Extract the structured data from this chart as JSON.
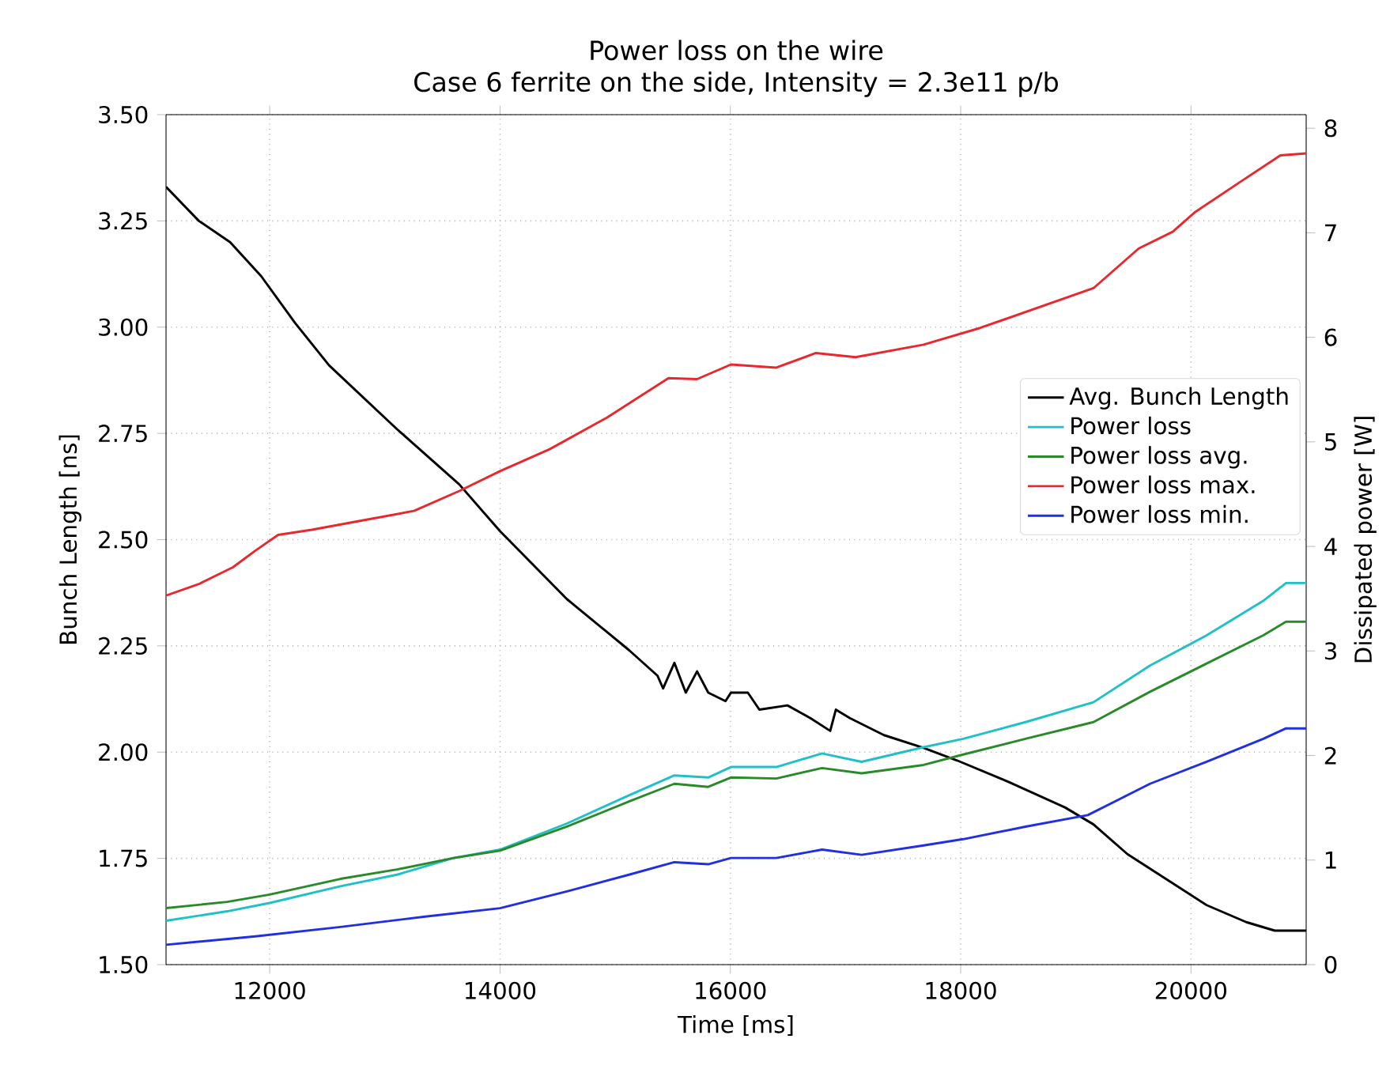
{
  "chart_data": {
    "type": "line",
    "title": "Power loss on the wire",
    "subtitle": "Case 6 ferrite on the side, Intensity = 2.3e11 p/b",
    "xlabel": "Time [ms]",
    "ylabel": "Bunch Length [ns]",
    "y2label": "Dissipated power [W]",
    "xlim": [
      11100,
      21000
    ],
    "xticks": [
      12000,
      14000,
      16000,
      18000,
      20000
    ],
    "ylim": [
      1.5,
      3.5
    ],
    "yticks": [
      {
        "value": 1.5,
        "label": "1.50"
      },
      {
        "value": 1.75,
        "label": "1.75"
      },
      {
        "value": 2.0,
        "label": "2.00"
      },
      {
        "value": 2.25,
        "label": "2.25"
      },
      {
        "value": 2.5,
        "label": "2.50"
      },
      {
        "value": 2.75,
        "label": "2.75"
      },
      {
        "value": 3.0,
        "label": "3.00"
      },
      {
        "value": 3.25,
        "label": "3.25"
      },
      {
        "value": 3.5,
        "label": "3.50"
      }
    ],
    "y2lim": [
      0,
      8.13
    ],
    "y2ticks": [
      0,
      1,
      2,
      3,
      4,
      5,
      6,
      7,
      8
    ],
    "grid": true,
    "legend": "right",
    "line_style": "solid",
    "series": [
      {
        "name": "Avg. Bunch Length",
        "color": "#000000",
        "x": [
          11100,
          11385,
          11656,
          11926,
          12220,
          12516,
          13105,
          13646,
          14000,
          14581,
          15120,
          15367,
          15416,
          15514,
          15613,
          15711,
          15808,
          15958,
          16005,
          16152,
          16252,
          16496,
          16695,
          16867,
          16916,
          17038,
          17334,
          17678,
          17973,
          18415,
          18905,
          19153,
          19448,
          19792,
          20136,
          20480,
          20727,
          21000
        ],
        "values": [
          3.33,
          3.25,
          3.2,
          3.12,
          3.01,
          2.91,
          2.76,
          2.63,
          2.52,
          2.36,
          2.24,
          2.18,
          2.15,
          2.21,
          2.14,
          2.19,
          2.14,
          2.12,
          2.14,
          2.14,
          2.1,
          2.11,
          2.08,
          2.05,
          2.1,
          2.08,
          2.04,
          2.01,
          1.98,
          1.93,
          1.87,
          1.83,
          1.76,
          1.7,
          1.64,
          1.6,
          1.58,
          1.58
        ]
      },
      {
        "name": "Power loss",
        "color": "#20c0c8",
        "axis": "y2",
        "x": [
          11100,
          11631,
          12000,
          12614,
          13105,
          13597,
          14000,
          14581,
          15120,
          15514,
          15808,
          16005,
          16399,
          16796,
          17140,
          17678,
          18022,
          18563,
          19153,
          19644,
          20136,
          20628,
          20825,
          21000
        ],
        "values": [
          0.42,
          0.51,
          0.59,
          0.75,
          0.86,
          1.02,
          1.1,
          1.35,
          1.62,
          1.81,
          1.79,
          1.89,
          1.89,
          2.02,
          1.94,
          2.08,
          2.16,
          2.32,
          2.51,
          2.86,
          3.15,
          3.48,
          3.65,
          3.65
        ]
      },
      {
        "name": "Power loss avg.",
        "color": "#2a8a2a",
        "axis": "y2",
        "x": [
          11100,
          11631,
          12000,
          12614,
          13105,
          13597,
          14000,
          14581,
          15120,
          15514,
          15808,
          16005,
          16399,
          16796,
          17140,
          17678,
          18022,
          18563,
          19153,
          19644,
          20136,
          20628,
          20825,
          21000
        ],
        "values": [
          0.54,
          0.6,
          0.67,
          0.82,
          0.91,
          1.02,
          1.09,
          1.32,
          1.56,
          1.73,
          1.7,
          1.79,
          1.78,
          1.88,
          1.83,
          1.91,
          2.01,
          2.16,
          2.32,
          2.61,
          2.88,
          3.15,
          3.28,
          3.28
        ]
      },
      {
        "name": "Power loss max.",
        "color": "#e8282c",
        "axis": "y2",
        "x": [
          11100,
          11385,
          11680,
          11876,
          12073,
          12366,
          12860,
          13253,
          13646,
          14000,
          14431,
          14925,
          15463,
          15711,
          16005,
          16399,
          16743,
          17087,
          17678,
          18169,
          18661,
          19153,
          19546,
          19841,
          20038,
          20432,
          20776,
          21000
        ],
        "values": [
          3.53,
          3.64,
          3.8,
          3.96,
          4.11,
          4.16,
          4.26,
          4.34,
          4.53,
          4.72,
          4.93,
          5.23,
          5.61,
          5.6,
          5.74,
          5.71,
          5.85,
          5.81,
          5.93,
          6.09,
          6.28,
          6.47,
          6.85,
          7.01,
          7.2,
          7.49,
          7.74,
          7.76
        ]
      },
      {
        "name": "Power loss min.",
        "color": "#2030e0",
        "axis": "y2",
        "x": [
          11100,
          11876,
          12614,
          13351,
          14000,
          14581,
          15120,
          15514,
          15808,
          16005,
          16399,
          16796,
          17140,
          17678,
          18022,
          18563,
          19104,
          19644,
          20136,
          20628,
          20825,
          21000
        ],
        "values": [
          0.19,
          0.27,
          0.36,
          0.46,
          0.54,
          0.7,
          0.86,
          0.98,
          0.96,
          1.02,
          1.02,
          1.1,
          1.05,
          1.14,
          1.2,
          1.32,
          1.43,
          1.73,
          1.94,
          2.16,
          2.26,
          2.26
        ]
      }
    ]
  }
}
